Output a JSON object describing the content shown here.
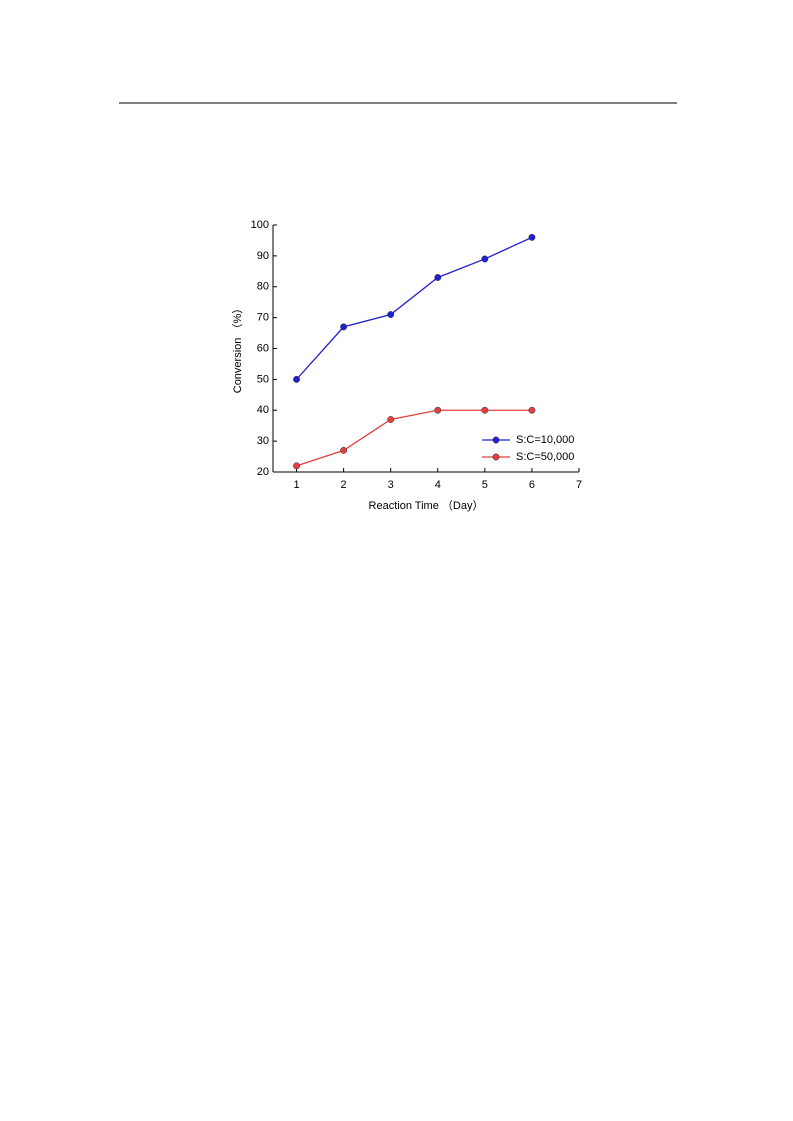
{
  "chart_data": {
    "type": "line",
    "x": [
      1,
      2,
      3,
      4,
      5,
      6
    ],
    "series": [
      {
        "name": "S:C=10,000",
        "color": "#2020d0",
        "values": [
          50,
          67,
          71,
          83,
          89,
          96
        ]
      },
      {
        "name": "S:C=50,000",
        "color": "#e04040",
        "values": [
          22,
          27,
          37,
          40,
          40,
          40
        ]
      }
    ],
    "xlabel": "Reaction Time （Day）",
    "ylabel": "Conversion （%）",
    "xlim": [
      0.5,
      7
    ],
    "xticks": [
      1,
      2,
      3,
      4,
      5,
      6,
      7
    ],
    "ylim": [
      20,
      100
    ],
    "yticks": [
      20,
      30,
      40,
      50,
      60,
      70,
      80,
      90,
      100
    ],
    "legend": "lower right",
    "grid": false
  }
}
